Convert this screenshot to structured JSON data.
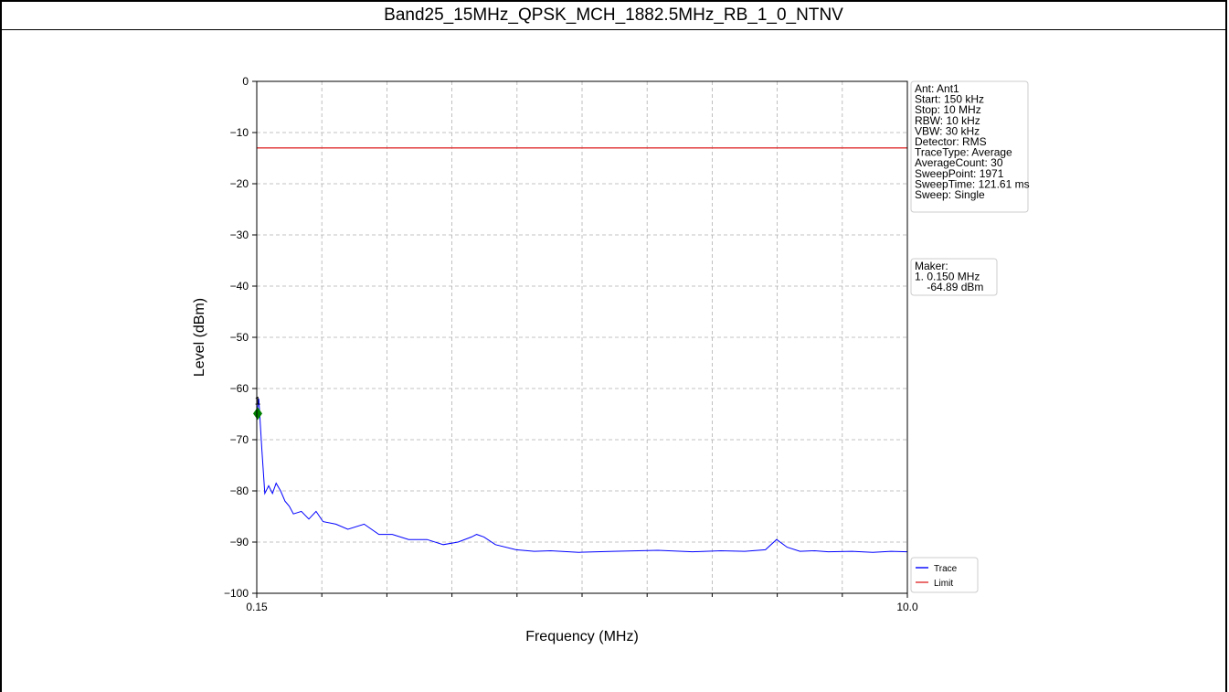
{
  "title": "Band25_15MHz_QPSK_MCH_1882.5MHz_RB_1_0_NTNV",
  "colors": {
    "trace": "#0000ff",
    "limit": "#e03030",
    "marker": "#008000",
    "grid": "#b0b0b0"
  },
  "chart_data": {
    "type": "line",
    "xlabel": "Frequency (MHz)",
    "ylabel": "Level (dBm)",
    "xscale": "log",
    "xlim": [
      0.15,
      10.0
    ],
    "ylim": [
      -100,
      0
    ],
    "xtick_labels": [
      "0.15",
      "10.0"
    ],
    "yticks": [
      0,
      -10,
      -20,
      -30,
      -40,
      -50,
      -60,
      -70,
      -80,
      -90,
      -100
    ],
    "ytick_labels": [
      "0",
      "−10",
      "−20",
      "−30",
      "−40",
      "−50",
      "−60",
      "−70",
      "−80",
      "−90",
      "−100"
    ],
    "grid": true,
    "legend_placement": "lower-right",
    "series": [
      {
        "name": "Trace",
        "x": [
          0.15,
          0.152,
          0.155,
          0.158,
          0.162,
          0.166,
          0.17,
          0.175,
          0.18,
          0.185,
          0.19,
          0.2,
          0.21,
          0.22,
          0.23,
          0.25,
          0.27,
          0.3,
          0.33,
          0.36,
          0.4,
          0.45,
          0.5,
          0.55,
          0.6,
          0.62,
          0.65,
          0.7,
          0.8,
          0.9,
          1.0,
          1.2,
          1.5,
          2.0,
          2.5,
          3.0,
          3.5,
          4.0,
          4.3,
          4.6,
          5.0,
          5.5,
          6.0,
          7.0,
          8.0,
          9.0,
          10.0
        ],
        "y": [
          -64.9,
          -62.0,
          -72.0,
          -80.5,
          -79.0,
          -80.5,
          -78.5,
          -80.0,
          -82.0,
          -83.0,
          -84.5,
          -84.0,
          -85.5,
          -84.0,
          -86.0,
          -86.5,
          -87.5,
          -86.5,
          -88.5,
          -88.5,
          -89.5,
          -89.5,
          -90.5,
          -90.0,
          -89.0,
          -88.5,
          -89.0,
          -90.5,
          -91.5,
          -91.8,
          -91.7,
          -92.0,
          -91.8,
          -91.6,
          -91.9,
          -91.7,
          -91.8,
          -91.5,
          -89.5,
          -91.0,
          -91.8,
          -91.7,
          -91.9,
          -91.8,
          -92.0,
          -91.8,
          -91.9
        ]
      },
      {
        "name": "Limit",
        "x": [
          0.15,
          10.0
        ],
        "y": [
          -13.0,
          -13.0
        ]
      }
    ],
    "markers": [
      {
        "label": "1",
        "x": 0.15,
        "y": -64.89
      }
    ]
  },
  "info_box": {
    "lines": [
      "Ant: Ant1",
      "Start: 150 kHz",
      "Stop: 10 MHz",
      "RBW: 10 kHz",
      "VBW: 30 kHz",
      "Detector: RMS",
      "TraceType: Average",
      "AverageCount: 30",
      "SweepPoint: 1971",
      "SweepTime: 121.61 ms",
      "Sweep: Single"
    ]
  },
  "marker_box": {
    "lines": [
      "Maker:",
      "1. 0.150 MHz",
      "    -64.89 dBm"
    ]
  }
}
